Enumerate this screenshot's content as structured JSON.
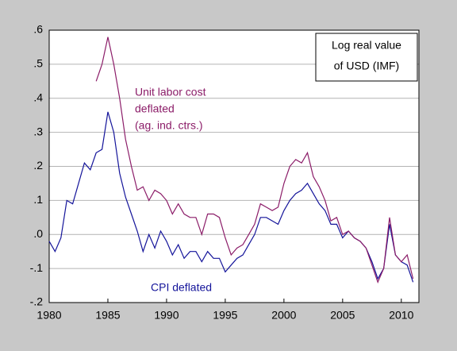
{
  "chart_data": {
    "type": "line",
    "x": [
      1980,
      1980.5,
      1981,
      1981.5,
      1982,
      1982.5,
      1983,
      1983.5,
      1984,
      1984.5,
      1985,
      1985.5,
      1986,
      1986.5,
      1987,
      1987.5,
      1988,
      1988.5,
      1989,
      1989.5,
      1990,
      1990.5,
      1991,
      1991.5,
      1992,
      1992.5,
      1993,
      1993.5,
      1994,
      1994.5,
      1995,
      1995.5,
      1996,
      1996.5,
      1997,
      1997.5,
      1998,
      1998.5,
      1999,
      1999.5,
      2000,
      2000.5,
      2001,
      2001.5,
      2002,
      2002.5,
      2003,
      2003.5,
      2004,
      2004.5,
      2005,
      2005.5,
      2006,
      2006.5,
      2007,
      2007.5,
      2008,
      2008.5,
      2009,
      2009.5,
      2010,
      2010.5,
      2011
    ],
    "series": [
      {
        "color": "#14149a",
        "values": [
          -0.02,
          -0.05,
          -0.01,
          0.1,
          0.09,
          0.15,
          0.21,
          0.19,
          0.24,
          0.25,
          0.36,
          0.3,
          0.18,
          0.11,
          0.06,
          0.01,
          -0.05,
          0.0,
          -0.04,
          0.01,
          -0.02,
          -0.06,
          -0.03,
          -0.07,
          -0.05,
          -0.05,
          -0.08,
          -0.05,
          -0.07,
          -0.07,
          -0.11,
          -0.09,
          -0.07,
          -0.06,
          -0.03,
          0.0,
          0.05,
          0.05,
          0.04,
          0.03,
          0.07,
          0.1,
          0.12,
          0.13,
          0.15,
          0.12,
          0.09,
          0.07,
          0.03,
          0.03,
          -0.01,
          0.01,
          -0.01,
          -0.02,
          -0.04,
          -0.08,
          -0.13,
          -0.1,
          0.03,
          -0.06,
          -0.08,
          -0.09,
          -0.14
        ]
      },
      {
        "color": "#8b1c68",
        "values": [
          null,
          null,
          null,
          null,
          null,
          null,
          null,
          null,
          0.45,
          0.5,
          0.58,
          0.5,
          0.4,
          0.28,
          0.2,
          0.13,
          0.14,
          0.1,
          0.13,
          0.12,
          0.1,
          0.06,
          0.09,
          0.06,
          0.05,
          0.05,
          0.0,
          0.06,
          0.06,
          0.05,
          -0.01,
          -0.06,
          -0.04,
          -0.03,
          0.0,
          0.03,
          0.09,
          0.08,
          0.07,
          0.08,
          0.15,
          0.2,
          0.22,
          0.21,
          0.24,
          0.17,
          0.14,
          0.1,
          0.04,
          0.05,
          0.0,
          0.01,
          -0.01,
          -0.02,
          -0.04,
          -0.09,
          -0.14,
          -0.1,
          0.05,
          -0.06,
          -0.08,
          -0.06,
          -0.13
        ]
      }
    ],
    "xlim": [
      1980,
      2011.5
    ],
    "xticks": [
      1980,
      1985,
      1990,
      1995,
      2000,
      2005,
      2010
    ],
    "ylim": [
      -0.2,
      0.6
    ],
    "yticks": [
      {
        "value": -0.2,
        "label": "-.2"
      },
      {
        "value": -0.1,
        "label": "-.1"
      },
      {
        "value": 0,
        "label": ".0"
      },
      {
        "value": 0.1,
        "label": ".1"
      },
      {
        "value": 0.2,
        "label": ".2"
      },
      {
        "value": 0.3,
        "label": ".3"
      },
      {
        "value": 0.4,
        "label": ".4"
      },
      {
        "value": 0.5,
        "label": ".5"
      },
      {
        "value": 0.6,
        "label": ".6"
      }
    ],
    "grid": true,
    "title_box": [
      "Log real value",
      "of USD (IMF)"
    ],
    "annotations": [
      {
        "lines": [
          "Unit labor cost",
          "deflated",
          "(ag. ind. ctrs.)"
        ],
        "color": "#8b1c68"
      },
      {
        "lines": [
          "CPI deflated"
        ],
        "color": "#14149a"
      }
    ]
  }
}
